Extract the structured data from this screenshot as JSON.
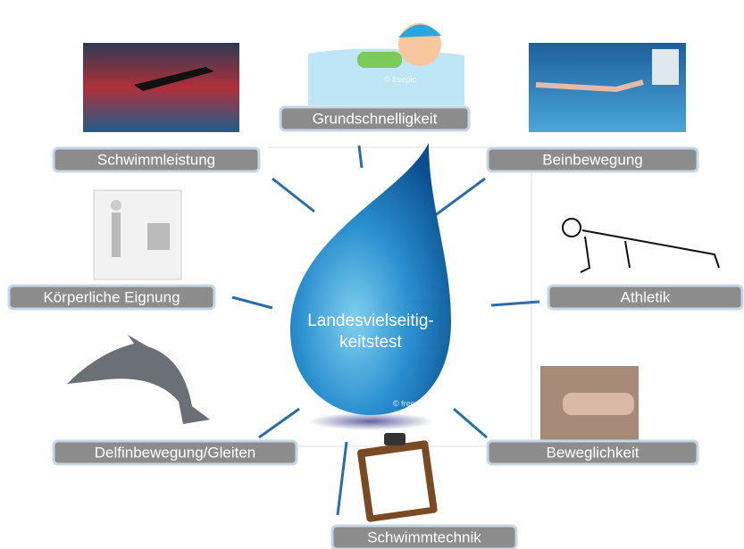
{
  "center": {
    "lines": [
      "Landesvielseitig-",
      "keitstest"
    ],
    "watermark": "© freepic"
  },
  "swimmer_watermark": "© freepic",
  "nodes": [
    {
      "label": "Grundschnelligkeit"
    },
    {
      "label": "Schwimmleistung"
    },
    {
      "label": "Beinbewegung"
    },
    {
      "label": "Körperliche Eignung"
    },
    {
      "label": "Athletik"
    },
    {
      "label": "Delfinbewegung/Gleiten"
    },
    {
      "label": "Beweglichkeit"
    },
    {
      "label": "Schwimmtechnik"
    }
  ]
}
